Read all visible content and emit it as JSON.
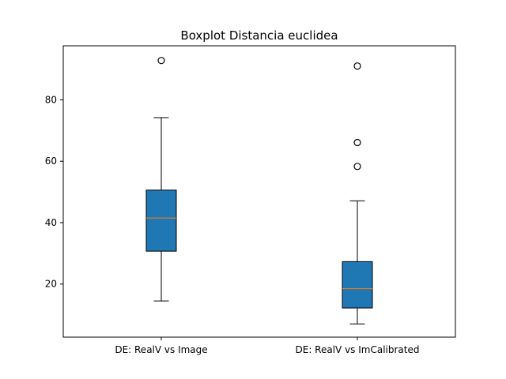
{
  "chart_data": {
    "type": "boxplot",
    "title": "Boxplot Distancia euclidea",
    "xlabel": "",
    "ylabel": "",
    "ylim": [
      2.7,
      97.6
    ],
    "yticks": [
      20,
      40,
      60,
      80
    ],
    "grid": false,
    "legend": "none",
    "colors": {
      "box_fill": "#1f77b4",
      "median": "#ff7f0e",
      "edge": "#000000",
      "background": "#ffffff"
    },
    "categories": [
      "DE: RealV vs Image",
      "DE: RealV vs ImCalibrated"
    ],
    "boxes": [
      {
        "label": "DE: RealV vs Image",
        "whisker_low": 14.5,
        "q1": 30.7,
        "median": 41.5,
        "q3": 50.6,
        "whisker_high": 74.2,
        "outliers": [
          92.8
        ]
      },
      {
        "label": "DE: RealV vs ImCalibrated",
        "whisker_low": 7.0,
        "q1": 12.2,
        "median": 18.5,
        "q3": 27.3,
        "whisker_high": 47.1,
        "outliers": [
          91.0,
          66.1,
          58.3
        ]
      }
    ]
  }
}
